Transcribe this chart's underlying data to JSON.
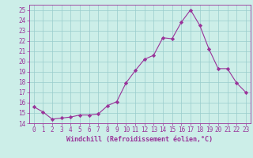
{
  "x": [
    0,
    1,
    2,
    3,
    4,
    5,
    6,
    7,
    8,
    9,
    10,
    11,
    12,
    13,
    14,
    15,
    16,
    17,
    18,
    19,
    20,
    21,
    22,
    23
  ],
  "y": [
    15.6,
    15.1,
    14.4,
    14.5,
    14.6,
    14.8,
    14.8,
    14.9,
    15.7,
    16.1,
    17.9,
    19.1,
    20.2,
    20.6,
    22.3,
    22.2,
    23.8,
    25.0,
    23.5,
    21.2,
    19.3,
    19.3,
    17.9,
    17.0
  ],
  "line_color": "#993399",
  "marker": "D",
  "marker_size": 2.2,
  "bg_color": "#cceee8",
  "grid_color": "#99cccc",
  "xlabel": "Windchill (Refroidissement éolien,°C)",
  "ylim": [
    14,
    25.5
  ],
  "xlim": [
    -0.5,
    23.5
  ],
  "yticks": [
    14,
    15,
    16,
    17,
    18,
    19,
    20,
    21,
    22,
    23,
    24,
    25
  ],
  "xticks": [
    0,
    1,
    2,
    3,
    4,
    5,
    6,
    7,
    8,
    9,
    10,
    11,
    12,
    13,
    14,
    15,
    16,
    17,
    18,
    19,
    20,
    21,
    22,
    23
  ],
  "tick_fontsize": 5.5,
  "xlabel_fontsize": 6.0
}
